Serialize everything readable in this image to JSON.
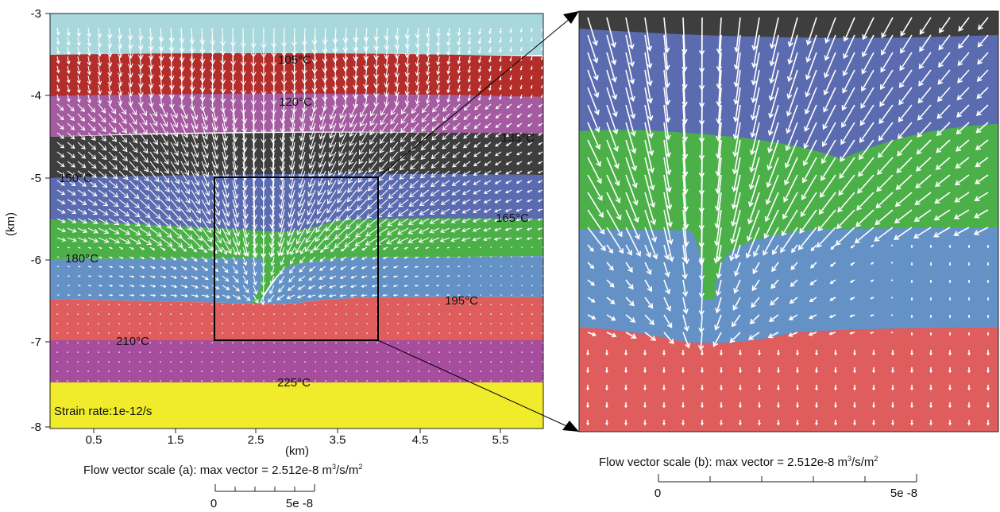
{
  "panel_a": {
    "y_ticks": [
      "-3",
      "-4",
      "-5",
      "-6",
      "-7",
      "-8"
    ],
    "x_ticks": [
      "0.5",
      "1.5",
      "2.5",
      "3.5",
      "4.5",
      "5.5"
    ],
    "y_label": "(km)",
    "x_label": "(km)",
    "temperatures": [
      "105°C",
      "120°C",
      "135°C",
      "150°C",
      "165°C",
      "180°C",
      "195°C",
      "210°C",
      "225°C"
    ],
    "strain_rate": "Strain rate:1e-12/s",
    "scale_caption": "Flow vector scale (a):   max vector =  2.512e-8 m",
    "scale_unit_sup1": "3",
    "scale_unit_mid": "/s/m",
    "scale_unit_sup2": "2",
    "scale_min": "0",
    "scale_max": "5e -8"
  },
  "panel_b": {
    "scale_caption": "Flow vector scale (b):   max vector =  2.512e-8 m",
    "scale_unit_sup1": "3",
    "scale_unit_mid": "/s/m",
    "scale_unit_sup2": "2",
    "scale_min": "0",
    "scale_max": "5e -8"
  },
  "layer_colors": {
    "cyan": "#a8d8dc",
    "red": "#b32d2a",
    "purple": "#a45ba0",
    "dark_gray": "#3e3e3e",
    "blue_purple": "#5b6bb0",
    "green": "#4cb048",
    "light_blue": "#6592c6",
    "salmon": "#e05d5d",
    "magenta": "#a64d9e",
    "yellow": "#f0eb2b"
  }
}
